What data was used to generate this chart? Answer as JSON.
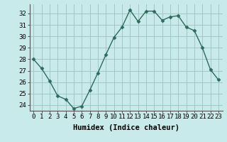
{
  "x": [
    0,
    1,
    2,
    3,
    4,
    5,
    6,
    7,
    8,
    9,
    10,
    11,
    12,
    13,
    14,
    15,
    16,
    17,
    18,
    19,
    20,
    21,
    22,
    23
  ],
  "y": [
    28.0,
    27.2,
    26.1,
    24.8,
    24.5,
    23.7,
    23.9,
    25.3,
    26.8,
    28.4,
    29.9,
    30.8,
    32.3,
    31.3,
    32.2,
    32.2,
    31.4,
    31.7,
    31.8,
    30.8,
    30.5,
    29.0,
    27.1,
    26.2
  ],
  "line_color": "#2e6b5e",
  "marker": "D",
  "marker_size": 2.5,
  "bg_color": "#c8eaea",
  "grid_color": "#a0c8c8",
  "xlabel": "Humidex (Indice chaleur)",
  "ylabel": "",
  "ylim": [
    23.5,
    32.8
  ],
  "xlim": [
    -0.5,
    23.5
  ],
  "yticks": [
    24,
    25,
    26,
    27,
    28,
    29,
    30,
    31,
    32
  ],
  "xticks": [
    0,
    1,
    2,
    3,
    4,
    5,
    6,
    7,
    8,
    9,
    10,
    11,
    12,
    13,
    14,
    15,
    16,
    17,
    18,
    19,
    20,
    21,
    22,
    23
  ],
  "xlabel_fontsize": 7.5,
  "tick_fontsize": 6.5,
  "spine_color": "#555555",
  "linewidth": 1.0
}
